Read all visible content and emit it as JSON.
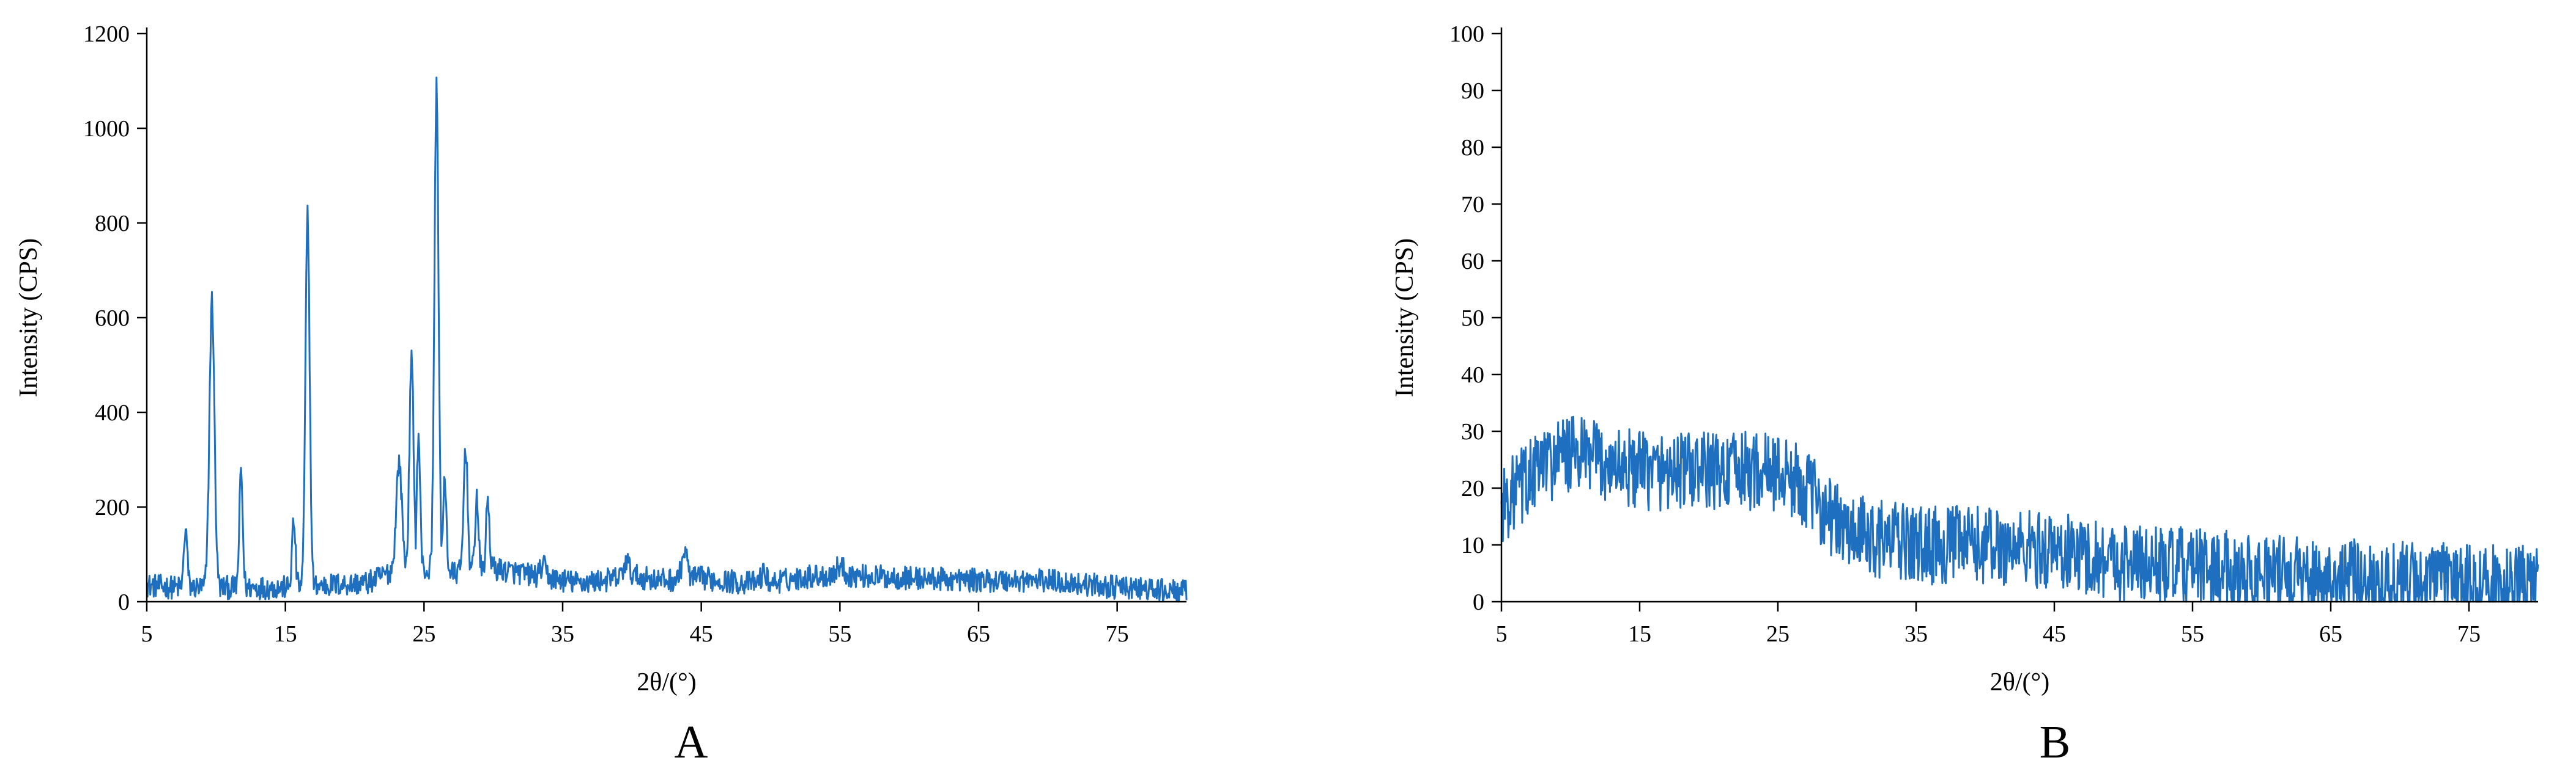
{
  "chart_data": [
    {
      "type": "line",
      "panel_label": "A",
      "xlabel": "2θ/(°)",
      "ylabel": "Intensity (CPS)",
      "xlim": [
        5,
        80
      ],
      "ylim": [
        0,
        1200
      ],
      "xticks": [
        5,
        15,
        25,
        35,
        45,
        55,
        65,
        75
      ],
      "yticks": [
        0,
        200,
        400,
        600,
        800,
        1000,
        1200
      ],
      "grid": false,
      "legend": "none",
      "color": "#1F6FC0",
      "baseline": [
        [
          5,
          35
        ],
        [
          7,
          30
        ],
        [
          15,
          30
        ],
        [
          21,
          40
        ],
        [
          23,
          70
        ],
        [
          27,
          60
        ],
        [
          30,
          70
        ],
        [
          34,
          50
        ],
        [
          36,
          40
        ],
        [
          38,
          45
        ],
        [
          40,
          55
        ],
        [
          42,
          45
        ],
        [
          45,
          50
        ],
        [
          48,
          40
        ],
        [
          50,
          40
        ],
        [
          53,
          55
        ],
        [
          56,
          55
        ],
        [
          60,
          50
        ],
        [
          65,
          45
        ],
        [
          70,
          45
        ],
        [
          75,
          30
        ],
        [
          80,
          20
        ]
      ],
      "noise": 25,
      "peaks": [
        {
          "x": 7.8,
          "y": 155,
          "w": 0.12
        },
        {
          "x": 9.7,
          "y": 635,
          "w": 0.18
        },
        {
          "x": 11.8,
          "y": 275,
          "w": 0.12
        },
        {
          "x": 15.6,
          "y": 170,
          "w": 0.12
        },
        {
          "x": 16.6,
          "y": 820,
          "w": 0.15
        },
        {
          "x": 23.2,
          "y": 295,
          "w": 0.2
        },
        {
          "x": 24.1,
          "y": 510,
          "w": 0.15
        },
        {
          "x": 24.6,
          "y": 350,
          "w": 0.12
        },
        {
          "x": 25.9,
          "y": 1085,
          "w": 0.15
        },
        {
          "x": 26.5,
          "y": 260,
          "w": 0.12
        },
        {
          "x": 28.0,
          "y": 330,
          "w": 0.14
        },
        {
          "x": 28.8,
          "y": 220,
          "w": 0.12
        },
        {
          "x": 29.6,
          "y": 215,
          "w": 0.12
        },
        {
          "x": 33.6,
          "y": 75,
          "w": 0.2
        },
        {
          "x": 39.6,
          "y": 85,
          "w": 0.2
        },
        {
          "x": 43.8,
          "y": 105,
          "w": 0.2
        },
        {
          "x": 49.5,
          "y": 60,
          "w": 0.2
        },
        {
          "x": 55.0,
          "y": 75,
          "w": 0.3
        }
      ]
    },
    {
      "type": "line",
      "panel_label": "B",
      "xlabel": "2θ/(°)",
      "ylabel": "Intensity (CPS)",
      "xlim": [
        5,
        80
      ],
      "ylim": [
        0,
        100
      ],
      "xticks": [
        5,
        15,
        25,
        35,
        45,
        55,
        65,
        75
      ],
      "yticks": [
        0,
        10,
        20,
        30,
        40,
        50,
        60,
        70,
        80,
        90,
        100
      ],
      "grid": false,
      "legend": "none",
      "color": "#1F6FC0",
      "baseline": [
        [
          5,
          17
        ],
        [
          8,
          24
        ],
        [
          10,
          26
        ],
        [
          15,
          23
        ],
        [
          20,
          23
        ],
        [
          25,
          23
        ],
        [
          27,
          20
        ],
        [
          30,
          12
        ],
        [
          35,
          10
        ],
        [
          40,
          10
        ],
        [
          45,
          9
        ],
        [
          50,
          7
        ],
        [
          55,
          6
        ],
        [
          60,
          5
        ],
        [
          65,
          4
        ],
        [
          70,
          4
        ],
        [
          75,
          3
        ],
        [
          80,
          3
        ]
      ],
      "noise": 7,
      "peaks": []
    }
  ]
}
